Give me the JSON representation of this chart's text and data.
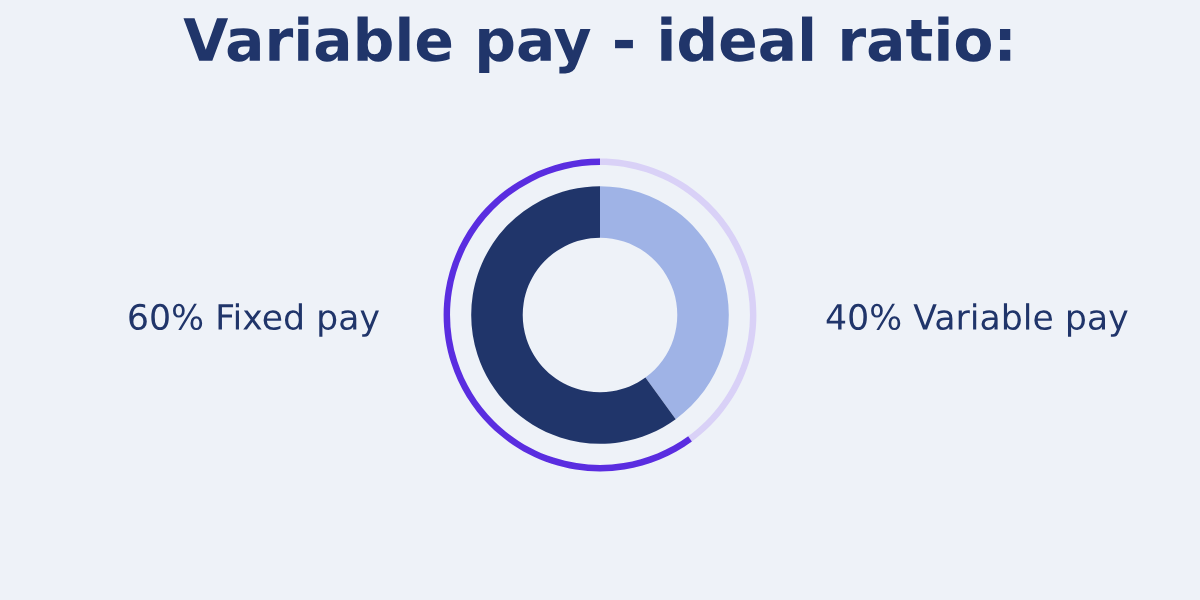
{
  "chart_data": {
    "type": "donut",
    "title": "Variable pay - ideal ratio:",
    "categories": [
      "Variable pay",
      "Fixed pay"
    ],
    "value_labels": [
      "40%",
      "60%"
    ],
    "series": [
      {
        "values": [
          40,
          60
        ],
        "colors": [
          "#9fb3e6",
          "#20356a"
        ]
      },
      {
        "values": [
          40,
          60
        ],
        "colors": [
          "#d9d1f7",
          "#5a2de0"
        ]
      }
    ],
    "legend": false
  }
}
